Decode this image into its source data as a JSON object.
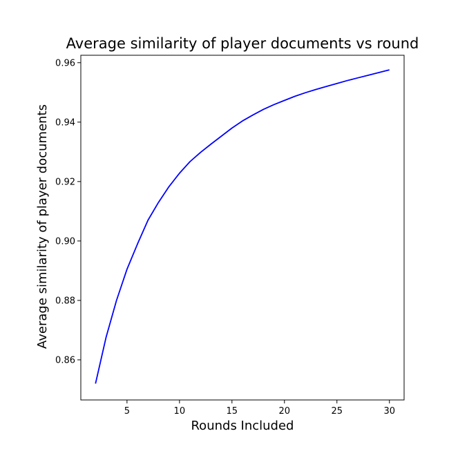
{
  "chart_data": {
    "type": "line",
    "title": "Average similarity of player documents vs round",
    "xlabel": "Rounds Included",
    "ylabel": "Average similarity of player documents",
    "xlim": [
      0.6,
      31.4
    ],
    "ylim": [
      0.8465,
      0.9625
    ],
    "xticks": [
      5,
      10,
      15,
      20,
      25,
      30
    ],
    "yticks": [
      0.86,
      0.88,
      0.9,
      0.92,
      0.94,
      0.96
    ],
    "ytick_labels": [
      "0.86",
      "0.88",
      "0.90",
      "0.92",
      "0.94",
      "0.96"
    ],
    "grid": false,
    "series": [
      {
        "color": "#0000ff",
        "x": [
          2,
          3,
          4,
          5,
          6,
          7,
          8,
          9,
          10,
          11,
          12,
          13,
          14,
          15,
          16,
          17,
          18,
          19,
          20,
          21,
          22,
          23,
          24,
          25,
          26,
          27,
          28,
          29,
          30
        ],
        "y": [
          0.852,
          0.8675,
          0.88,
          0.8905,
          0.899,
          0.907,
          0.913,
          0.9183,
          0.9228,
          0.9267,
          0.9298,
          0.9326,
          0.9353,
          0.938,
          0.9404,
          0.9424,
          0.9443,
          0.9459,
          0.9473,
          0.9487,
          0.9499,
          0.951,
          0.952,
          0.953,
          0.954,
          0.9549,
          0.9558,
          0.9567,
          0.9576
        ]
      }
    ]
  }
}
